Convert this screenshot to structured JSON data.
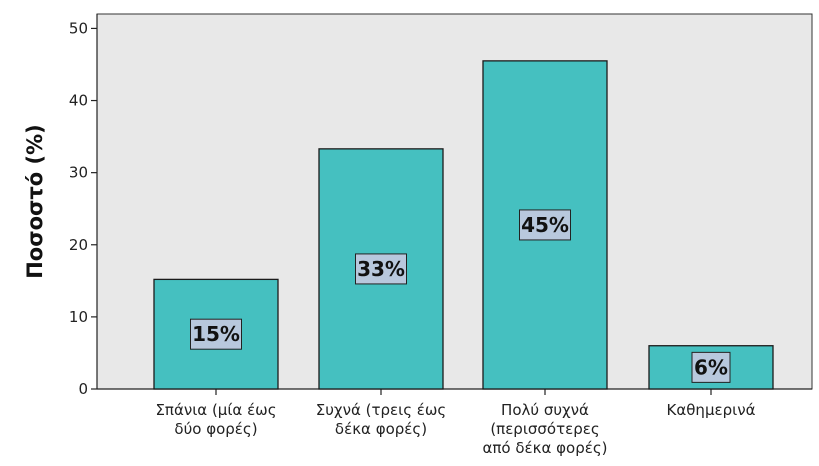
{
  "chart_data": {
    "type": "bar",
    "title": "",
    "xlabel": "",
    "ylabel": "Ποσοστό (%)",
    "ylim": [
      0,
      52
    ],
    "yticks": [
      0,
      10,
      20,
      30,
      40,
      50
    ],
    "grid": false,
    "categories": [
      [
        "Σπάνια (μία έως",
        "δύο φορές)"
      ],
      [
        "Συχνά (τρεις έως",
        "δέκα φορές)"
      ],
      [
        "Πολύ συχνά",
        "(περισσότερες",
        "από δέκα φορές)"
      ],
      [
        "Καθημερινά"
      ]
    ],
    "values": [
      15.2,
      33.3,
      45.5,
      6.0
    ],
    "data_labels": [
      "15%",
      "33%",
      "45%",
      "6%"
    ],
    "colors": {
      "bar": "#45C0C0",
      "bar_stroke": "#1b1b1b",
      "plot_bg": "#E8E8E8",
      "label_box": "#B8C8DD"
    }
  }
}
